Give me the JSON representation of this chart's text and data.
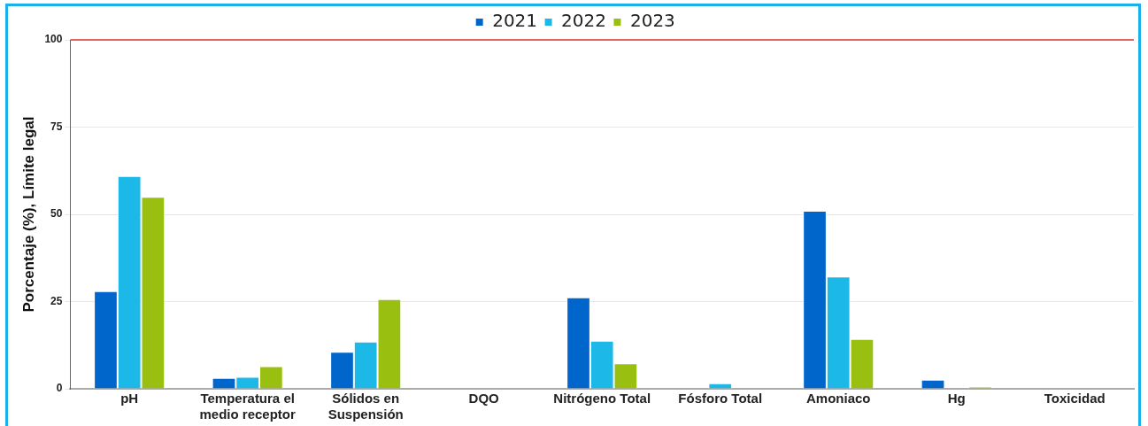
{
  "chart_data": {
    "type": "bar",
    "ylabel": "Porcentaje (%), Límite legal",
    "categories": [
      "pH",
      "Temperatura el medio receptor",
      "Sólidos en Suspensión",
      "DQO",
      "Nitrógeno Total",
      "Fósforo Total",
      "Amoniaco",
      "Hg",
      "Toxicidad"
    ],
    "series": [
      {
        "name": "2021",
        "color": "#0066cc",
        "values": [
          28,
          3.1,
          10.6,
          null,
          26.2,
          0,
          51,
          2.6,
          0
        ]
      },
      {
        "name": "2022",
        "color": "#1cb9e8",
        "values": [
          61,
          3.4,
          13.5,
          0,
          13.8,
          1.6,
          32.2,
          null,
          null
        ]
      },
      {
        "name": "2023",
        "color": "#99c010",
        "values": [
          55,
          6.5,
          25.7,
          0,
          7.3,
          0,
          14.3,
          0.6,
          0
        ]
      }
    ],
    "ylim": [
      0,
      100
    ],
    "yticks": [
      0,
      25,
      50,
      75,
      100
    ],
    "grid": "y",
    "legend": "top",
    "ref_lines": [
      {
        "axis": "y",
        "value": 100,
        "color": "#e03030"
      }
    ]
  }
}
